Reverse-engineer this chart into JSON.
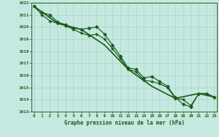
{
  "title": "Graphe pression niveau de la mer (hPa)",
  "background_color": "#c5e8e0",
  "grid_color": "#b0d4cc",
  "line_color": "#1a5c1a",
  "xlim": [
    0,
    23
  ],
  "ylim": [
    1013,
    1022
  ],
  "yticks": [
    1013,
    1014,
    1015,
    1016,
    1017,
    1018,
    1019,
    1020,
    1021,
    1022
  ],
  "xticks": [
    0,
    1,
    2,
    3,
    4,
    5,
    6,
    7,
    8,
    9,
    10,
    11,
    12,
    13,
    14,
    15,
    16,
    17,
    18,
    19,
    20,
    21,
    22,
    23
  ],
  "series": [
    {
      "x": [
        0,
        1,
        2,
        3,
        4,
        5,
        6,
        7,
        8,
        9,
        10,
        11,
        12,
        13,
        14,
        15,
        16,
        17,
        18,
        19,
        20,
        21,
        22,
        23
      ],
      "y": [
        1021.7,
        1021.2,
        1021.0,
        1020.4,
        1020.2,
        1019.9,
        1019.8,
        1019.9,
        1020.0,
        1019.4,
        1018.5,
        1017.6,
        1016.6,
        1016.5,
        1015.8,
        1015.9,
        1015.5,
        1015.1,
        1014.2,
        1013.6,
        1013.4,
        1014.5,
        1014.5,
        1014.2
      ],
      "marker": "D",
      "markersize": 2.5,
      "linewidth": 0.9
    },
    {
      "x": [
        0,
        1,
        2,
        3,
        4,
        5,
        6,
        7,
        8,
        9,
        10,
        11,
        12,
        13,
        14,
        15,
        16,
        17,
        18,
        19,
        20,
        21,
        22,
        23
      ],
      "y": [
        1021.7,
        1021.0,
        1020.5,
        1020.3,
        1020.1,
        1019.8,
        1019.5,
        1019.3,
        1019.4,
        1019.0,
        1018.2,
        1017.4,
        1016.5,
        1016.3,
        1015.6,
        1015.5,
        1015.3,
        1015.0,
        1014.1,
        1014.0,
        1013.5,
        1014.5,
        1014.5,
        1014.2
      ],
      "marker": "P",
      "markersize": 2.5,
      "linewidth": 0.9
    },
    {
      "x": [
        0,
        3,
        6,
        9,
        12,
        15,
        18,
        21,
        23
      ],
      "y": [
        1021.7,
        1020.3,
        1019.8,
        1018.5,
        1016.5,
        1015.1,
        1014.1,
        1014.5,
        1014.2
      ],
      "marker": null,
      "linewidth": 1.3
    }
  ]
}
